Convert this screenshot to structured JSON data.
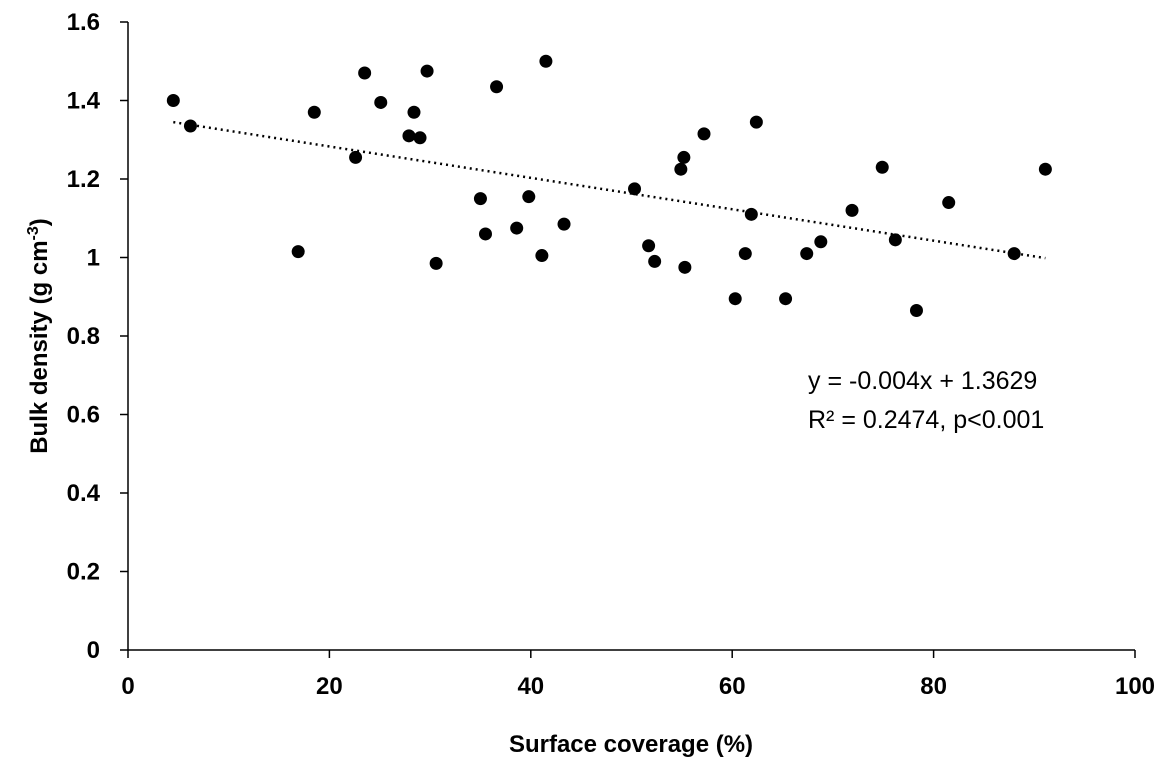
{
  "chart_data": {
    "type": "scatter",
    "title": "",
    "xlabel": "Surface coverage (%)",
    "ylabel": {
      "main": "Bulk density (g cm",
      "superscript": "-3",
      "close": ")"
    },
    "xlim": [
      0,
      100
    ],
    "ylim": [
      0,
      1.6
    ],
    "xticks": [
      0,
      20,
      40,
      60,
      80,
      100
    ],
    "yticks": [
      0,
      0.2,
      0.4,
      0.6,
      0.8,
      1,
      1.2,
      1.4,
      1.6
    ],
    "ytick_labels": [
      "0",
      "0.2",
      "0.4",
      "0.6",
      "0.8",
      "1",
      "1.2",
      "1.4",
      "1.6"
    ],
    "grid": false,
    "legend": "none",
    "marker_color": "#000000",
    "points": [
      [
        4.5,
        1.4
      ],
      [
        6.2,
        1.335
      ],
      [
        16.9,
        1.015
      ],
      [
        18.5,
        1.37
      ],
      [
        22.6,
        1.255
      ],
      [
        23.5,
        1.47
      ],
      [
        25.1,
        1.395
      ],
      [
        27.9,
        1.31
      ],
      [
        28.4,
        1.37
      ],
      [
        29.0,
        1.305
      ],
      [
        29.7,
        1.475
      ],
      [
        30.6,
        0.985
      ],
      [
        35.0,
        1.15
      ],
      [
        35.5,
        1.06
      ],
      [
        36.6,
        1.435
      ],
      [
        38.6,
        1.075
      ],
      [
        39.8,
        1.155
      ],
      [
        41.1,
        1.005
      ],
      [
        41.5,
        1.5
      ],
      [
        43.3,
        1.085
      ],
      [
        50.3,
        1.175
      ],
      [
        51.7,
        1.03
      ],
      [
        52.3,
        0.99
      ],
      [
        54.9,
        1.225
      ],
      [
        55.2,
        1.255
      ],
      [
        55.3,
        0.975
      ],
      [
        57.2,
        1.315
      ],
      [
        60.3,
        0.895
      ],
      [
        61.3,
        1.01
      ],
      [
        61.9,
        1.11
      ],
      [
        62.4,
        1.345
      ],
      [
        65.3,
        0.895
      ],
      [
        67.4,
        1.01
      ],
      [
        68.8,
        1.04
      ],
      [
        71.9,
        1.12
      ],
      [
        74.9,
        1.23
      ],
      [
        76.2,
        1.045
      ],
      [
        78.3,
        0.865
      ],
      [
        81.5,
        1.14
      ],
      [
        88.0,
        1.01
      ],
      [
        91.1,
        1.225
      ]
    ],
    "trendline": {
      "style": "dotted",
      "x_range": [
        4.5,
        91.1
      ],
      "slope": -0.004,
      "intercept": 1.3629
    },
    "annotations": [
      "y = -0.004x + 1.3629",
      "R² = 0.2474, p<0.001"
    ]
  }
}
